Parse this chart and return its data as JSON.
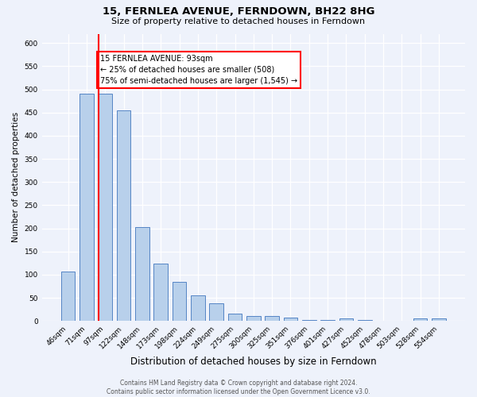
{
  "title": "15, FERNLEA AVENUE, FERNDOWN, BH22 8HG",
  "subtitle": "Size of property relative to detached houses in Ferndown",
  "xlabel": "Distribution of detached houses by size in Ferndown",
  "ylabel": "Number of detached properties",
  "categories": [
    "46sqm",
    "71sqm",
    "97sqm",
    "122sqm",
    "148sqm",
    "173sqm",
    "198sqm",
    "224sqm",
    "249sqm",
    "275sqm",
    "300sqm",
    "325sqm",
    "351sqm",
    "376sqm",
    "401sqm",
    "427sqm",
    "452sqm",
    "478sqm",
    "503sqm",
    "528sqm",
    "554sqm"
  ],
  "values": [
    107,
    490,
    490,
    455,
    202,
    124,
    84,
    56,
    38,
    16,
    10,
    10,
    8,
    2,
    2,
    5,
    2,
    0,
    0,
    6,
    6
  ],
  "bar_color": "#b8d0eb",
  "bar_edge_color": "#5585c5",
  "red_line_index": 2,
  "bar_width": 0.75,
  "annotation_text": "15 FERNLEA AVENUE: 93sqm\n← 25% of detached houses are smaller (508)\n75% of semi-detached houses are larger (1,545) →",
  "annotation_box_color": "white",
  "annotation_box_edge_color": "red",
  "footer": "Contains HM Land Registry data © Crown copyright and database right 2024.\nContains public sector information licensed under the Open Government Licence v3.0.",
  "background_color": "#eef2fb",
  "ylim": [
    0,
    620
  ],
  "yticks": [
    0,
    50,
    100,
    150,
    200,
    250,
    300,
    350,
    400,
    450,
    500,
    550,
    600
  ],
  "title_fontsize": 9.5,
  "subtitle_fontsize": 8,
  "xlabel_fontsize": 8.5,
  "ylabel_fontsize": 7.5,
  "tick_fontsize": 6.5,
  "annotation_fontsize": 7,
  "footer_fontsize": 5.5
}
